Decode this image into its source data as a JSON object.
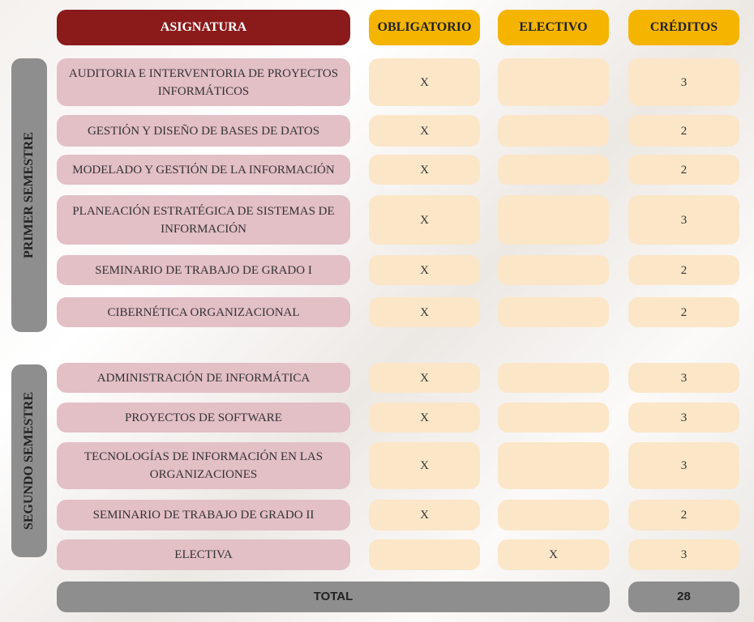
{
  "header": {
    "columns": [
      "ASIGNATURA",
      "OBLIGATORIO",
      "ELECTIVO",
      "CRÉDITOS"
    ]
  },
  "semesters": [
    {
      "label": "PRIMER SEMESTRE",
      "rows": [
        [
          "AUDITORIA E INTERVENTORIA DE PROYECTOS INFORMÁTICOS",
          "X",
          null,
          3
        ],
        [
          "GESTIÓN Y DISEÑO DE BASES DE DATOS",
          "X",
          null,
          2
        ],
        [
          "MODELADO Y GESTIÓN DE LA INFORMACIÓN",
          "X",
          null,
          2
        ],
        [
          "PLANEACIÓN ESTRATÉGICA DE SISTEMAS DE INFORMACIÓN",
          "X",
          null,
          3
        ],
        [
          "SEMINARIO DE TRABAJO DE GRADO I",
          "X",
          null,
          2
        ],
        [
          "CIBERNÉTICA ORGANIZACIONAL",
          "X",
          null,
          2
        ]
      ]
    },
    {
      "label": "SEGUNDO SEMESTRE",
      "rows": [
        [
          "ADMINISTRACIÓN DE INFORMÁTICA",
          "X",
          null,
          3
        ],
        [
          "PROYECTOS DE SOFTWARE",
          "X",
          null,
          3
        ],
        [
          "TECNOLOGÍAS DE INFORMACIÓN EN LAS ORGANIZACIONES",
          "X",
          null,
          3
        ],
        [
          "SEMINARIO DE TRABAJO DE GRADO II",
          "X",
          null,
          2
        ],
        [
          "ELECTIVA",
          null,
          "X",
          3
        ]
      ]
    }
  ],
  "total": {
    "label": "TOTAL",
    "value": 28
  }
}
